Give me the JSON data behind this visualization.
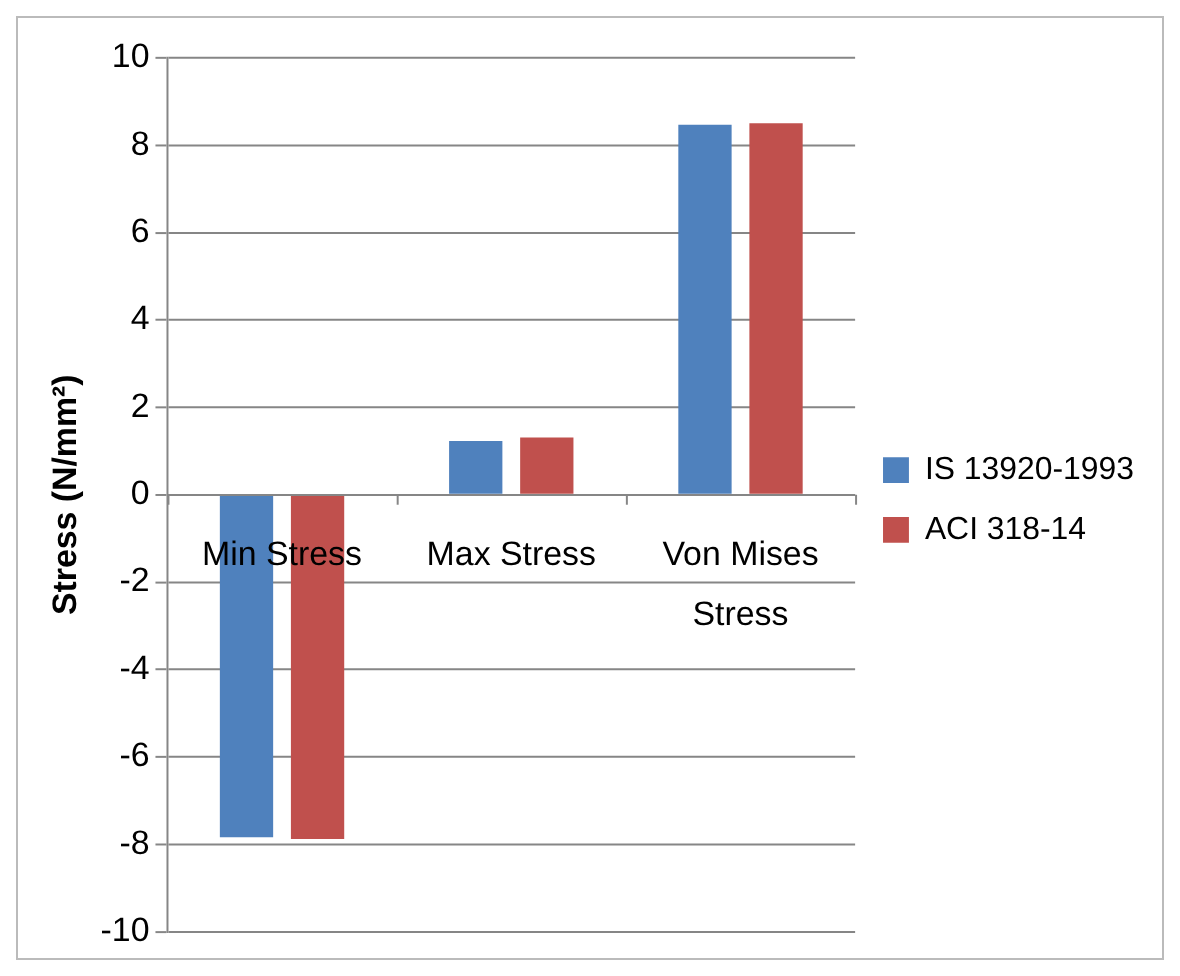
{
  "chart_data": {
    "type": "bar",
    "ylabel": "Stress (N/mm²)",
    "categories": [
      "Min Stress",
      "Max Stress",
      "Von Mises Stress"
    ],
    "series": [
      {
        "name": "IS 13920-1993",
        "color": "#4f81bd",
        "values": [
          -7.84,
          1.23,
          8.47
        ]
      },
      {
        "name": "ACI 318-14",
        "color": "#c0504d",
        "values": [
          -7.88,
          1.31,
          8.5
        ]
      }
    ],
    "ylim": [
      -10,
      10
    ],
    "yticks": [
      -10,
      -8,
      -6,
      -4,
      -2,
      0,
      2,
      4,
      6,
      8,
      10
    ],
    "grid": "y",
    "legend": "right"
  }
}
